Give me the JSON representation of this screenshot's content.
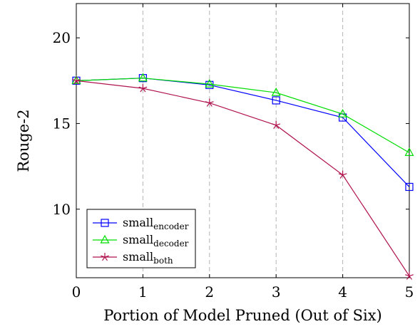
{
  "chart_data": {
    "type": "line",
    "title": "",
    "xlabel": "Portion of Model Pruned (Out of Six)",
    "ylabel": "Rouge-2",
    "x": [
      0,
      1,
      2,
      3,
      4,
      5
    ],
    "xlim": [
      0,
      5
    ],
    "ylim": [
      6,
      22
    ],
    "xticks": [
      "0",
      "1",
      "2",
      "3",
      "4",
      "5"
    ],
    "yticks": [
      "10",
      "15",
      "20"
    ],
    "ytick_values": [
      10,
      15,
      20
    ],
    "grid": "vertical-dashed",
    "legend_position": "bottom-left",
    "series": [
      {
        "name": "small",
        "name_sub": "encoder",
        "color": "#0000ff",
        "marker": "square",
        "values": [
          17.5,
          17.65,
          17.25,
          16.35,
          15.35,
          11.3
        ]
      },
      {
        "name": "small",
        "name_sub": "decoder",
        "color": "#00dd00",
        "marker": "triangle",
        "values": [
          17.5,
          17.65,
          17.3,
          16.8,
          15.55,
          13.3
        ]
      },
      {
        "name": "small",
        "name_sub": "both",
        "color": "#b0124e",
        "marker": "star",
        "values": [
          17.5,
          17.05,
          16.2,
          14.9,
          12.0,
          6.1
        ]
      }
    ]
  }
}
